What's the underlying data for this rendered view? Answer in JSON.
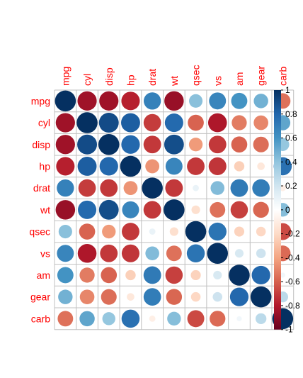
{
  "chart_data": {
    "type": "heatmap",
    "title": "",
    "variables": [
      "mpg",
      "cyl",
      "disp",
      "hp",
      "drat",
      "wt",
      "qsec",
      "vs",
      "am",
      "gear",
      "carb"
    ],
    "correlation_matrix": [
      [
        1.0,
        -0.85,
        -0.85,
        -0.78,
        0.68,
        -0.87,
        0.42,
        0.66,
        0.6,
        0.48,
        -0.55
      ],
      [
        -0.85,
        1.0,
        0.9,
        0.83,
        -0.7,
        0.78,
        -0.59,
        -0.81,
        -0.52,
        -0.49,
        0.53
      ],
      [
        -0.85,
        0.9,
        1.0,
        0.79,
        -0.71,
        0.89,
        -0.43,
        -0.71,
        -0.59,
        -0.56,
        0.39
      ],
      [
        -0.78,
        0.83,
        0.79,
        1.0,
        -0.45,
        0.66,
        -0.71,
        -0.72,
        -0.24,
        -0.13,
        0.75
      ],
      [
        0.68,
        -0.7,
        -0.71,
        -0.45,
        1.0,
        -0.71,
        0.09,
        0.44,
        0.71,
        0.7,
        -0.09
      ],
      [
        -0.87,
        0.78,
        0.89,
        0.66,
        -0.71,
        1.0,
        -0.17,
        -0.55,
        -0.69,
        -0.58,
        0.43
      ],
      [
        0.42,
        -0.59,
        -0.43,
        -0.71,
        0.09,
        -0.17,
        1.0,
        0.74,
        -0.23,
        -0.21,
        -0.66
      ],
      [
        0.66,
        -0.81,
        -0.71,
        -0.72,
        0.44,
        -0.55,
        0.74,
        1.0,
        0.17,
        0.21,
        -0.57
      ],
      [
        0.6,
        -0.52,
        -0.59,
        -0.24,
        0.71,
        -0.69,
        -0.23,
        0.17,
        1.0,
        0.79,
        0.06
      ],
      [
        0.48,
        -0.49,
        -0.56,
        -0.13,
        0.7,
        -0.58,
        -0.21,
        0.21,
        0.79,
        1.0,
        0.27
      ],
      [
        -0.55,
        0.53,
        0.39,
        0.75,
        -0.09,
        0.43,
        -0.66,
        -0.57,
        0.06,
        0.27,
        1.0
      ]
    ],
    "colorbar": {
      "range": [
        -1,
        1
      ],
      "ticks": [
        "1",
        "0.8",
        "0.6",
        "0.4",
        "0.2",
        "0",
        "-0.2",
        "-0.4",
        "-0.6",
        "-0.8",
        "-1"
      ],
      "tick_values": [
        1,
        0.8,
        0.6,
        0.4,
        0.2,
        0,
        -0.2,
        -0.4,
        -0.6,
        -0.8,
        -1
      ],
      "palette": [
        "#67001F",
        "#B2182B",
        "#D6604D",
        "#F4A582",
        "#FDDBC7",
        "#FFFFFF",
        "#D1E5F0",
        "#92C5DE",
        "#4393C3",
        "#2166AC",
        "#053061"
      ]
    },
    "label_color": "#FF0000",
    "grid_color": "#C0C0C0"
  }
}
